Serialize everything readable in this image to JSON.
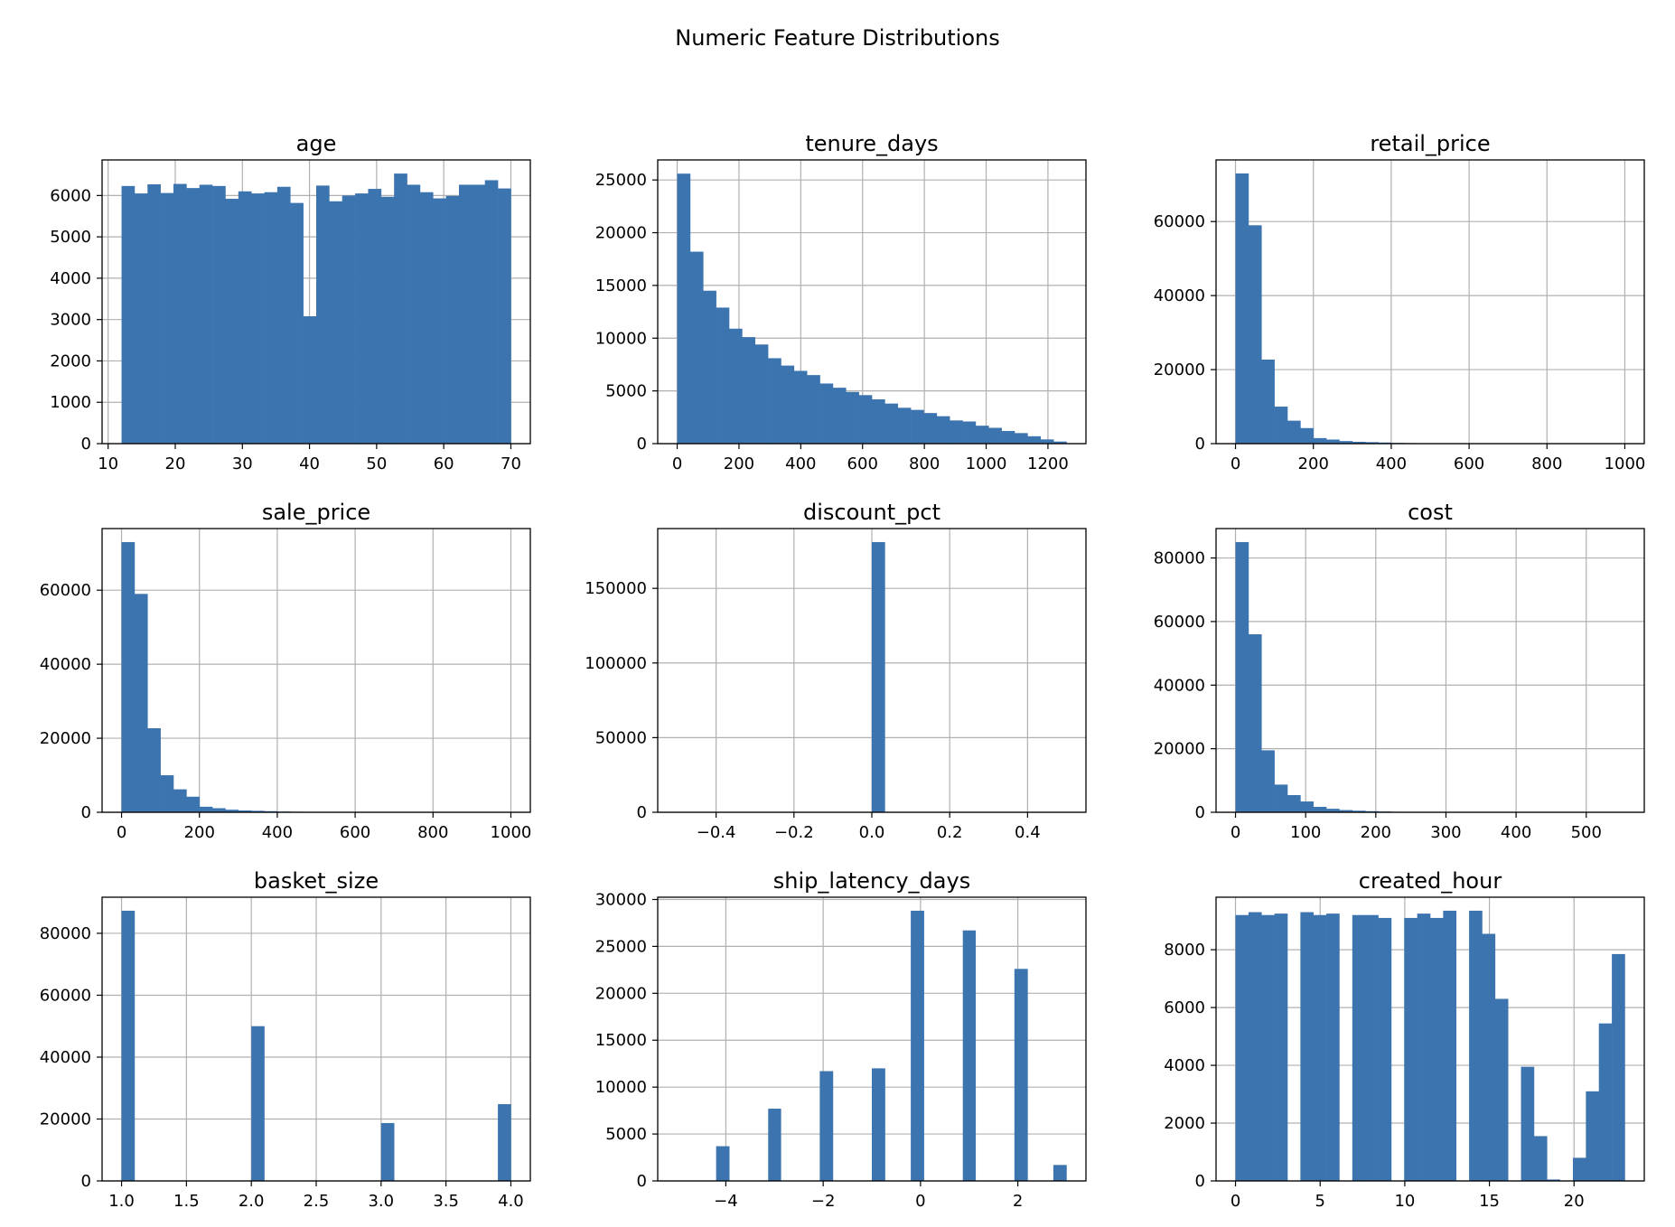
{
  "figure": {
    "title": "Numeric Feature Distributions"
  },
  "style": {
    "bar_color": "#3c74b0",
    "grid_color": "#b0b0b0",
    "axis_color": "#000000"
  },
  "chart_data": [
    {
      "type": "bar",
      "title": "age",
      "xlabel": "",
      "ylabel": "",
      "grid": true,
      "bin_range": [
        12,
        70
      ],
      "counts": [
        6230,
        6050,
        6270,
        6060,
        6280,
        6180,
        6260,
        6230,
        5920,
        6100,
        6050,
        6080,
        6210,
        5820,
        3080,
        6240,
        5860,
        6000,
        6050,
        6160,
        5970,
        6530,
        6260,
        6080,
        5930,
        5990,
        6260,
        6260,
        6370,
        6170
      ],
      "xlim": [
        9.1,
        72.9
      ],
      "ylim": [
        0,
        6860
      ],
      "xticks": [
        10,
        20,
        30,
        40,
        50,
        60,
        70
      ],
      "xtick_labels": [
        "10",
        "20",
        "30",
        "40",
        "50",
        "60",
        "70"
      ],
      "yticks": [
        0,
        1000,
        2000,
        3000,
        4000,
        5000,
        6000
      ],
      "ytick_labels": [
        "0",
        "1000",
        "2000",
        "3000",
        "4000",
        "5000",
        "6000"
      ]
    },
    {
      "type": "bar",
      "title": "tenure_days",
      "xlabel": "",
      "ylabel": "",
      "grid": true,
      "bin_range": [
        0,
        1260
      ],
      "counts": [
        25600,
        18200,
        14500,
        12900,
        10900,
        10100,
        9400,
        8100,
        7400,
        6900,
        6500,
        5700,
        5300,
        4900,
        4600,
        4200,
        3800,
        3400,
        3200,
        2900,
        2600,
        2200,
        2100,
        1700,
        1500,
        1200,
        1000,
        700,
        400,
        200
      ],
      "xlim": [
        -63,
        1323
      ],
      "ylim": [
        0,
        26900
      ],
      "xticks": [
        0,
        200,
        400,
        600,
        800,
        1000,
        1200
      ],
      "xtick_labels": [
        "0",
        "200",
        "400",
        "600",
        "800",
        "1000",
        "1200"
      ],
      "yticks": [
        0,
        5000,
        10000,
        15000,
        20000,
        25000
      ],
      "ytick_labels": [
        "0",
        "5000",
        "10000",
        "15000",
        "20000",
        "25000"
      ]
    },
    {
      "type": "bar",
      "title": "retail_price",
      "xlabel": "",
      "ylabel": "",
      "grid": true,
      "bin_range": [
        0,
        1000
      ],
      "counts": [
        73000,
        59000,
        22700,
        10000,
        6200,
        4200,
        1500,
        1100,
        700,
        500,
        400,
        300,
        200,
        150,
        100,
        80,
        60,
        50,
        40,
        30,
        30,
        20,
        20,
        20,
        10,
        10,
        10,
        10,
        10,
        10
      ],
      "xlim": [
        -50,
        1050
      ],
      "ylim": [
        0,
        76650
      ],
      "xticks": [
        0,
        200,
        400,
        600,
        800,
        1000
      ],
      "xtick_labels": [
        "0",
        "200",
        "400",
        "600",
        "800",
        "1000"
      ],
      "yticks": [
        0,
        20000,
        40000,
        60000
      ],
      "ytick_labels": [
        "0",
        "20000",
        "40000",
        "60000"
      ]
    },
    {
      "type": "bar",
      "title": "sale_price",
      "xlabel": "",
      "ylabel": "",
      "grid": true,
      "bin_range": [
        0,
        1000
      ],
      "counts": [
        73000,
        59000,
        22700,
        10000,
        6200,
        4200,
        1500,
        1100,
        700,
        500,
        400,
        300,
        200,
        150,
        100,
        80,
        60,
        50,
        40,
        30,
        30,
        20,
        20,
        20,
        10,
        10,
        10,
        10,
        10,
        10
      ],
      "xlim": [
        -50,
        1050
      ],
      "ylim": [
        0,
        76650
      ],
      "xticks": [
        0,
        200,
        400,
        600,
        800,
        1000
      ],
      "xtick_labels": [
        "0",
        "200",
        "400",
        "600",
        "800",
        "1000"
      ],
      "yticks": [
        0,
        20000,
        40000,
        60000
      ],
      "ytick_labels": [
        "0",
        "20000",
        "40000",
        "60000"
      ]
    },
    {
      "type": "bar",
      "title": "discount_pct",
      "xlabel": "",
      "ylabel": "",
      "grid": true,
      "bin_range": [
        -0.5,
        0.5
      ],
      "counts": [
        0,
        0,
        0,
        0,
        0,
        0,
        0,
        0,
        0,
        0,
        0,
        0,
        0,
        0,
        0,
        181000,
        0,
        0,
        0,
        0,
        0,
        0,
        0,
        0,
        0,
        0,
        0,
        0,
        0,
        0
      ],
      "xlim": [
        -0.55,
        0.55
      ],
      "ylim": [
        0,
        190050
      ],
      "xticks": [
        -0.4,
        -0.2,
        0.0,
        0.2,
        0.4
      ],
      "xtick_labels": [
        "−0.4",
        "−0.2",
        "0.0",
        "0.2",
        "0.4"
      ],
      "yticks": [
        0,
        50000,
        100000,
        150000
      ],
      "ytick_labels": [
        "0",
        "50000",
        "100000",
        "150000"
      ]
    },
    {
      "type": "bar",
      "title": "cost",
      "xlabel": "",
      "ylabel": "",
      "grid": true,
      "bin_range": [
        0,
        555
      ],
      "counts": [
        85000,
        56000,
        19500,
        8700,
        5400,
        3400,
        1700,
        1100,
        700,
        500,
        350,
        250,
        150,
        100,
        80,
        60,
        40,
        30,
        20,
        20,
        10,
        10,
        10,
        10,
        5,
        5,
        5,
        5,
        5,
        5
      ],
      "xlim": [
        -27.75,
        582.75
      ],
      "ylim": [
        0,
        89250
      ],
      "xticks": [
        0,
        100,
        200,
        300,
        400,
        500
      ],
      "xtick_labels": [
        "0",
        "100",
        "200",
        "300",
        "400",
        "500"
      ],
      "yticks": [
        0,
        20000,
        40000,
        60000,
        80000
      ],
      "ytick_labels": [
        "0",
        "20000",
        "40000",
        "60000",
        "80000"
      ]
    },
    {
      "type": "bar",
      "title": "basket_size",
      "xlabel": "",
      "ylabel": "",
      "grid": true,
      "bin_range": [
        1,
        4
      ],
      "counts": [
        87300,
        0,
        0,
        0,
        0,
        0,
        0,
        0,
        0,
        0,
        50000,
        0,
        0,
        0,
        0,
        0,
        0,
        0,
        0,
        0,
        18700,
        0,
        0,
        0,
        0,
        0,
        0,
        0,
        0,
        24800
      ],
      "xlim": [
        0.85,
        4.15
      ],
      "ylim": [
        0,
        91665
      ],
      "xticks": [
        1.0,
        1.5,
        2.0,
        2.5,
        3.0,
        3.5,
        4.0
      ],
      "xtick_labels": [
        "1.0",
        "1.5",
        "2.0",
        "2.5",
        "3.0",
        "3.5",
        "4.0"
      ],
      "yticks": [
        0,
        20000,
        40000,
        60000,
        80000
      ],
      "ytick_labels": [
        "0",
        "20000",
        "40000",
        "60000",
        "80000"
      ]
    },
    {
      "type": "bar",
      "title": "ship_latency_days",
      "xlabel": "",
      "ylabel": "",
      "grid": true,
      "bin_range": [
        -5,
        3
      ],
      "counts": [
        0,
        0,
        0,
        0,
        0,
        0,
        0,
        0,
        0,
        0,
        0,
        0,
        0,
        0,
        0,
        0,
        0,
        0,
        0,
        0,
        0,
        0,
        0,
        0,
        0,
        0,
        0,
        0,
        0,
        0
      ],
      "bars": [
        {
          "x0": -4.2,
          "x1": -3.93,
          "count": 3700
        },
        {
          "x0": -3.13,
          "x1": -2.87,
          "count": 7700
        },
        {
          "x0": -2.07,
          "x1": -1.8,
          "count": 11700
        },
        {
          "x0": -1.0,
          "x1": -0.73,
          "count": 12000
        },
        {
          "x0": -0.2,
          "x1": 0.07,
          "count": 28800
        },
        {
          "x0": 0.87,
          "x1": 1.13,
          "count": 26700
        },
        {
          "x0": 1.93,
          "x1": 2.2,
          "count": 22600
        },
        {
          "x0": 2.73,
          "x1": 3.0,
          "count": 1700
        }
      ],
      "xlim": [
        -5.4,
        3.4
      ],
      "ylim": [
        0,
        30240
      ],
      "xticks": [
        -4,
        -2,
        0,
        2
      ],
      "xtick_labels": [
        "−4",
        "−2",
        "0",
        "2"
      ],
      "yticks": [
        0,
        5000,
        10000,
        15000,
        20000,
        25000,
        30000
      ],
      "ytick_labels": [
        "0",
        "5000",
        "10000",
        "15000",
        "20000",
        "25000",
        "30000"
      ]
    },
    {
      "type": "bar",
      "title": "created_hour",
      "xlabel": "",
      "ylabel": "",
      "grid": true,
      "bin_range": [
        0,
        23
      ],
      "counts": [
        9200,
        9300,
        9200,
        9250,
        0,
        9300,
        9200,
        9250,
        0,
        9200,
        9200,
        9100,
        0,
        9100,
        9250,
        9100,
        9350,
        0,
        9350,
        8550,
        6300,
        0,
        3950,
        1550,
        50,
        0,
        800,
        3100,
        5450,
        7850
      ],
      "xlim": [
        -1.15,
        24.15
      ],
      "ylim": [
        0,
        9817
      ],
      "xticks": [
        0,
        5,
        10,
        15,
        20
      ],
      "xtick_labels": [
        "0",
        "5",
        "10",
        "15",
        "20"
      ],
      "yticks": [
        0,
        2000,
        4000,
        6000,
        8000
      ],
      "ytick_labels": [
        "0",
        "2000",
        "4000",
        "6000",
        "8000"
      ]
    }
  ]
}
